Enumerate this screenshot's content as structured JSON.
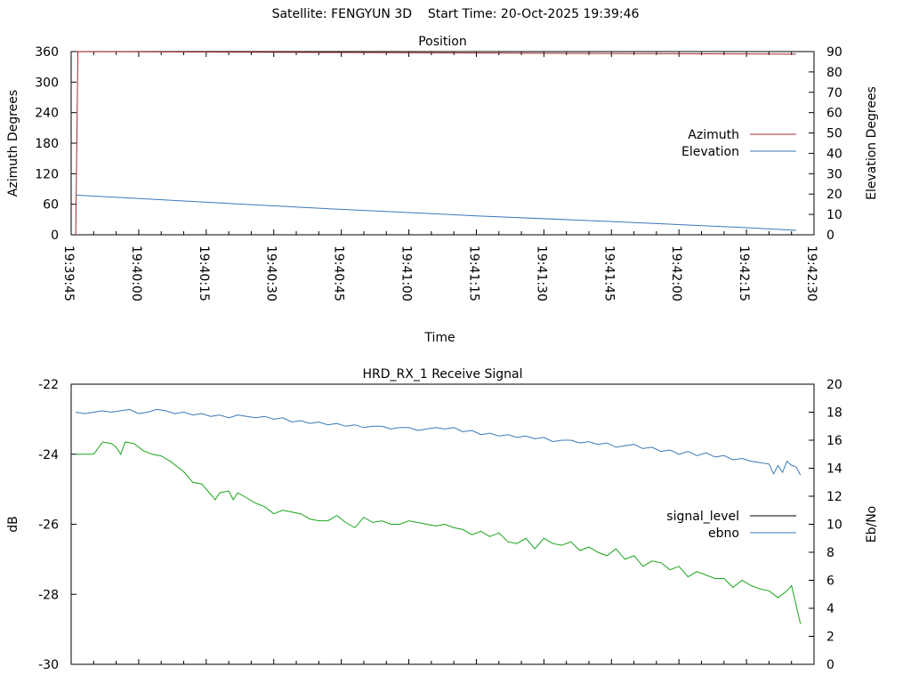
{
  "header": {
    "satellite": "Satellite: FENGYUN 3D",
    "start_time": "Start Time: 20-Oct-2025 19:39:46"
  },
  "chart_data": [
    {
      "type": "line",
      "title": "Position",
      "xlabel": "Time",
      "ylabel": "Azimuth Degrees",
      "y2label": "Elevation Degrees",
      "xlim": [
        0,
        165
      ],
      "ylim": [
        0,
        360
      ],
      "y2lim": [
        0,
        90
      ],
      "x_ticks": [
        "19:39:45",
        "19:40:00",
        "19:40:15",
        "19:40:30",
        "19:40:45",
        "19:41:00",
        "19:41:15",
        "19:41:30",
        "19:41:45",
        "19:42:00",
        "19:42:15",
        "19:42:30"
      ],
      "y_ticks": [
        "0",
        "60",
        "120",
        "180",
        "240",
        "300",
        "360"
      ],
      "y2_ticks": [
        "0",
        "10",
        "20",
        "30",
        "40",
        "50",
        "60",
        "70",
        "80",
        "90"
      ],
      "legend_position": "right",
      "series": [
        {
          "name": "Azimuth",
          "axis": "y",
          "color": "#a0282f",
          "points": [
            [
              1,
              0
            ],
            [
              1.5,
              360
            ],
            [
              161,
              355
            ]
          ]
        },
        {
          "name": "Elevation",
          "axis": "y2",
          "color": "#3a78b7",
          "points": [
            [
              1,
              19.5
            ],
            [
              30,
              16
            ],
            [
              60,
              12.5
            ],
            [
              90,
              9.3
            ],
            [
              120,
              6.5
            ],
            [
              150,
              3.5
            ],
            [
              161,
              2.2
            ]
          ]
        }
      ]
    },
    {
      "type": "line",
      "title": "HRD_RX_1 Receive Signal",
      "ylabel": "dB",
      "y2label": "Eb/No",
      "xlim": [
        0,
        165
      ],
      "ylim": [
        -30,
        -22
      ],
      "y2lim": [
        0,
        20
      ],
      "y_ticks": [
        "-22",
        "-24",
        "-26",
        "-28",
        "-30"
      ],
      "y2_ticks": [
        "0",
        "2",
        "4",
        "6",
        "8",
        "10",
        "12",
        "14",
        "16",
        "18",
        "20"
      ],
      "legend_position": "right",
      "series": [
        {
          "name": "signal_level",
          "axis": "y",
          "color": "#000000",
          "legend_only": true,
          "points": []
        },
        {
          "name": "ebno",
          "axis": "y2",
          "color": "#3a78b7",
          "points": [
            [
              1,
              18
            ],
            [
              3,
              17.9
            ],
            [
              5,
              18
            ],
            [
              7,
              18.1
            ],
            [
              9,
              18
            ],
            [
              11,
              18.1
            ],
            [
              13,
              18.2
            ],
            [
              15,
              17.9
            ],
            [
              17,
              18
            ],
            [
              19,
              18.2
            ],
            [
              21,
              18.1
            ],
            [
              23,
              17.9
            ],
            [
              25,
              18
            ],
            [
              27,
              17.8
            ],
            [
              29,
              17.9
            ],
            [
              31,
              17.7
            ],
            [
              33,
              17.8
            ],
            [
              35,
              17.6
            ],
            [
              37,
              17.8
            ],
            [
              39,
              17.7
            ],
            [
              41,
              17.6
            ],
            [
              43,
              17.7
            ],
            [
              45,
              17.5
            ],
            [
              47,
              17.6
            ],
            [
              49,
              17.3
            ],
            [
              51,
              17.4
            ],
            [
              53,
              17.2
            ],
            [
              55,
              17.3
            ],
            [
              57,
              17.1
            ],
            [
              59,
              17.2
            ],
            [
              61,
              17
            ],
            [
              63,
              17.1
            ],
            [
              65,
              16.9
            ],
            [
              67,
              17
            ],
            [
              69,
              17
            ],
            [
              71,
              16.8
            ],
            [
              73,
              16.9
            ],
            [
              75,
              16.9
            ],
            [
              77,
              16.7
            ],
            [
              79,
              16.8
            ],
            [
              81,
              16.9
            ],
            [
              83,
              16.8
            ],
            [
              85,
              16.9
            ],
            [
              87,
              16.6
            ],
            [
              89,
              16.7
            ],
            [
              91,
              16.4
            ],
            [
              93,
              16.5
            ],
            [
              95,
              16.3
            ],
            [
              97,
              16.4
            ],
            [
              99,
              16.2
            ],
            [
              101,
              16.3
            ],
            [
              103,
              16.1
            ],
            [
              105,
              16.2
            ],
            [
              107,
              15.9
            ],
            [
              109,
              16
            ],
            [
              111,
              16
            ],
            [
              113,
              15.8
            ],
            [
              115,
              15.9
            ],
            [
              117,
              15.7
            ],
            [
              119,
              15.8
            ],
            [
              121,
              15.5
            ],
            [
              123,
              15.6
            ],
            [
              125,
              15.7
            ],
            [
              127,
              15.4
            ],
            [
              129,
              15.5
            ],
            [
              131,
              15.2
            ],
            [
              133,
              15.3
            ],
            [
              135,
              15
            ],
            [
              137,
              15.2
            ],
            [
              139,
              14.9
            ],
            [
              141,
              15.1
            ],
            [
              143,
              14.8
            ],
            [
              145,
              14.9
            ],
            [
              147,
              14.6
            ],
            [
              149,
              14.7
            ],
            [
              151,
              14.5
            ],
            [
              153,
              14.4
            ],
            [
              155,
              14.3
            ],
            [
              156,
              13.6
            ],
            [
              157,
              14.2
            ],
            [
              158,
              13.7
            ],
            [
              159,
              14.5
            ],
            [
              160,
              14.2
            ],
            [
              161,
              14.1
            ],
            [
              162,
              13.5
            ]
          ]
        },
        {
          "name": "signal_level",
          "axis": "y",
          "color": "#1aa51a",
          "legend_only": false,
          "points": [
            [
              1,
              -24
            ],
            [
              3,
              -24
            ],
            [
              5,
              -24
            ],
            [
              7,
              -23.65
            ],
            [
              9,
              -23.7
            ],
            [
              10,
              -23.8
            ],
            [
              11,
              -24
            ],
            [
              12,
              -23.65
            ],
            [
              14,
              -23.7
            ],
            [
              16,
              -23.9
            ],
            [
              18,
              -24
            ],
            [
              20,
              -24.05
            ],
            [
              22,
              -24.2
            ],
            [
              23,
              -24.3
            ],
            [
              25,
              -24.5
            ],
            [
              27,
              -24.8
            ],
            [
              29,
              -24.85
            ],
            [
              31,
              -25.15
            ],
            [
              32,
              -25.3
            ],
            [
              33,
              -25.1
            ],
            [
              35,
              -25.05
            ],
            [
              36,
              -25.3
            ],
            [
              37,
              -25.1
            ],
            [
              39,
              -25.25
            ],
            [
              41,
              -25.4
            ],
            [
              43,
              -25.5
            ],
            [
              45,
              -25.7
            ],
            [
              47,
              -25.6
            ],
            [
              49,
              -25.65
            ],
            [
              51,
              -25.7
            ],
            [
              53,
              -25.85
            ],
            [
              55,
              -25.9
            ],
            [
              57,
              -25.9
            ],
            [
              59,
              -25.75
            ],
            [
              61,
              -25.95
            ],
            [
              63,
              -26.1
            ],
            [
              65,
              -25.8
            ],
            [
              67,
              -25.95
            ],
            [
              69,
              -25.9
            ],
            [
              71,
              -26
            ],
            [
              73,
              -26
            ],
            [
              75,
              -25.9
            ],
            [
              77,
              -25.95
            ],
            [
              79,
              -26
            ],
            [
              81,
              -26.05
            ],
            [
              83,
              -26
            ],
            [
              85,
              -26.1
            ],
            [
              87,
              -26.15
            ],
            [
              89,
              -26.3
            ],
            [
              91,
              -26.2
            ],
            [
              93,
              -26.35
            ],
            [
              95,
              -26.25
            ],
            [
              97,
              -26.5
            ],
            [
              99,
              -26.55
            ],
            [
              101,
              -26.4
            ],
            [
              103,
              -26.7
            ],
            [
              105,
              -26.4
            ],
            [
              107,
              -26.55
            ],
            [
              109,
              -26.6
            ],
            [
              111,
              -26.5
            ],
            [
              113,
              -26.75
            ],
            [
              115,
              -26.65
            ],
            [
              117,
              -26.8
            ],
            [
              119,
              -26.9
            ],
            [
              121,
              -26.7
            ],
            [
              123,
              -27
            ],
            [
              125,
              -26.9
            ],
            [
              127,
              -27.2
            ],
            [
              129,
              -27.05
            ],
            [
              131,
              -27.1
            ],
            [
              133,
              -27.3
            ],
            [
              135,
              -27.2
            ],
            [
              137,
              -27.5
            ],
            [
              139,
              -27.35
            ],
            [
              141,
              -27.45
            ],
            [
              143,
              -27.55
            ],
            [
              145,
              -27.55
            ],
            [
              147,
              -27.8
            ],
            [
              149,
              -27.6
            ],
            [
              151,
              -27.75
            ],
            [
              153,
              -27.85
            ],
            [
              155,
              -27.9
            ],
            [
              157,
              -28.1
            ],
            [
              159,
              -27.9
            ],
            [
              160,
              -27.75
            ],
            [
              161,
              -28.3
            ],
            [
              162,
              -28.85
            ]
          ]
        }
      ]
    }
  ]
}
